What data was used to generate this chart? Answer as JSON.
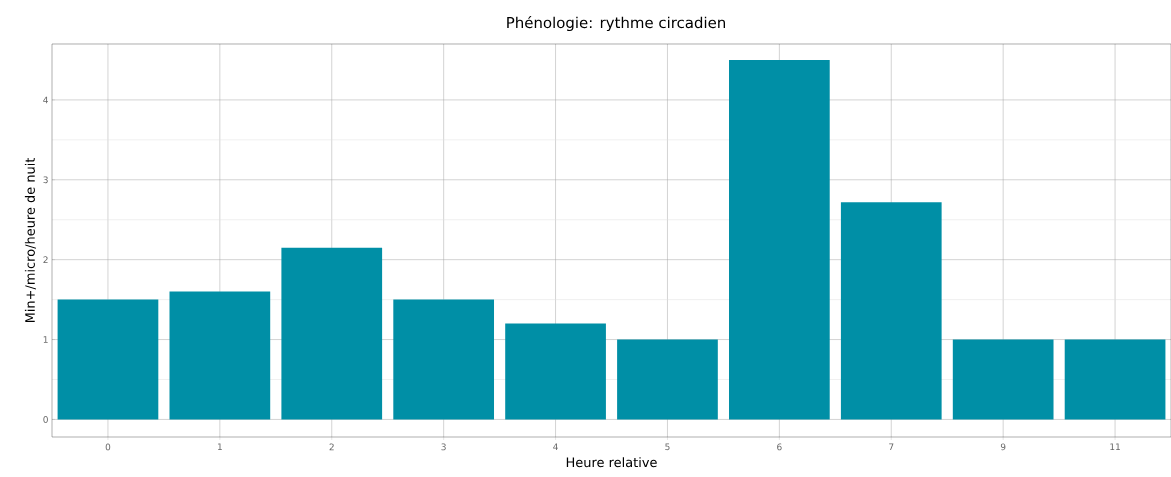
{
  "chart_data": {
    "type": "bar",
    "title": "Phénologie: rythme circadien",
    "xlabel": "Heure relative",
    "ylabel": "Min+/micro/heure de nuit",
    "categories": [
      "0",
      "1",
      "2",
      "3",
      "4",
      "5",
      "6",
      "7",
      "9",
      "11"
    ],
    "values": [
      1.5,
      1.6,
      2.15,
      1.5,
      1.2,
      1.0,
      4.5,
      2.72,
      1.0,
      1.0
    ],
    "color": "#008fa6",
    "ylim": [
      -0.22,
      4.7
    ],
    "yticks": [
      0,
      1,
      2,
      3,
      4
    ],
    "grid": true
  }
}
